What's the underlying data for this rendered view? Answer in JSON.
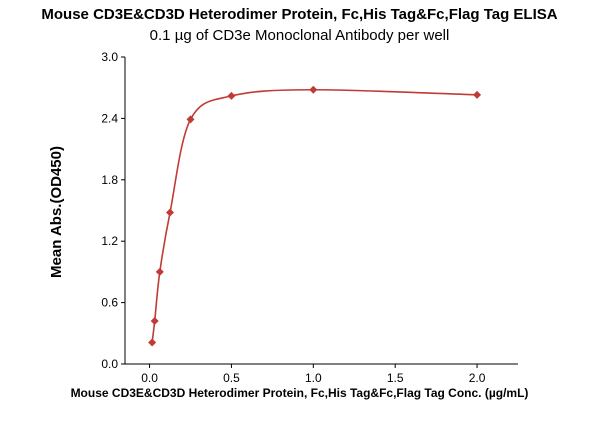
{
  "chart_data": {
    "type": "scatter",
    "title": "Mouse CD3E&CD3D Heterodimer Protein, Fc,His Tag&Fc,Flag Tag ELISA",
    "subtitle": "0.1 µg of CD3e Monoclonal Antibody per well",
    "xlabel": "Mouse CD3E&CD3D Heterodimer Protein, Fc,His Tag&Fc,Flag Tag Conc. (µg/mL)",
    "ylabel": "Mean Abs.(OD450)",
    "xlim": [
      -0.15,
      2.25
    ],
    "ylim": [
      0.0,
      3.0
    ],
    "x_ticks": [
      "0.0",
      "0.5",
      "1.0",
      "1.5",
      "2.0"
    ],
    "x_tick_values": [
      0.0,
      0.5,
      1.0,
      1.5,
      2.0
    ],
    "y_ticks": [
      "0.0",
      "0.6",
      "1.2",
      "1.8",
      "2.4",
      "3.0"
    ],
    "y_tick_values": [
      0.0,
      0.6,
      1.2,
      1.8,
      2.4,
      3.0
    ],
    "grid": false,
    "series": [
      {
        "color": "#c23a35",
        "points": [
          {
            "x": 0.0156,
            "y": 0.21
          },
          {
            "x": 0.0313,
            "y": 0.42
          },
          {
            "x": 0.0625,
            "y": 0.9
          },
          {
            "x": 0.125,
            "y": 1.48
          },
          {
            "x": 0.25,
            "y": 2.39
          },
          {
            "x": 0.5,
            "y": 2.62
          },
          {
            "x": 1.0,
            "y": 2.68
          },
          {
            "x": 2.0,
            "y": 2.63
          }
        ]
      }
    ]
  }
}
